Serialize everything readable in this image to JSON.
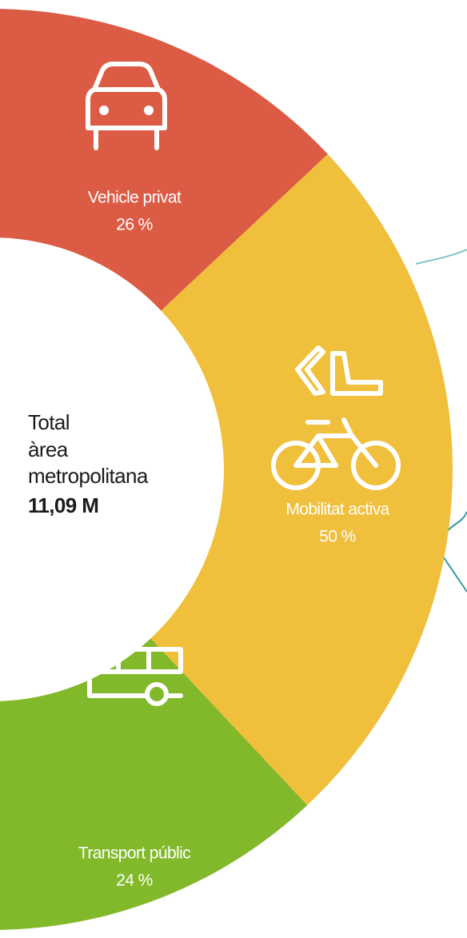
{
  "chart_data": {
    "type": "donut",
    "categories": [
      "Vehicle privat",
      "Mobilitat activa",
      "Transport públic"
    ],
    "values": [
      26,
      50,
      24
    ],
    "value_labels": [
      "26 %",
      "50 %",
      "24 %"
    ],
    "colors": [
      "#dc5b44",
      "#f0bf3b",
      "#82b92a"
    ],
    "center_text": [
      "Total",
      "àrea",
      "metropolitana",
      "11,09 M"
    ]
  }
}
